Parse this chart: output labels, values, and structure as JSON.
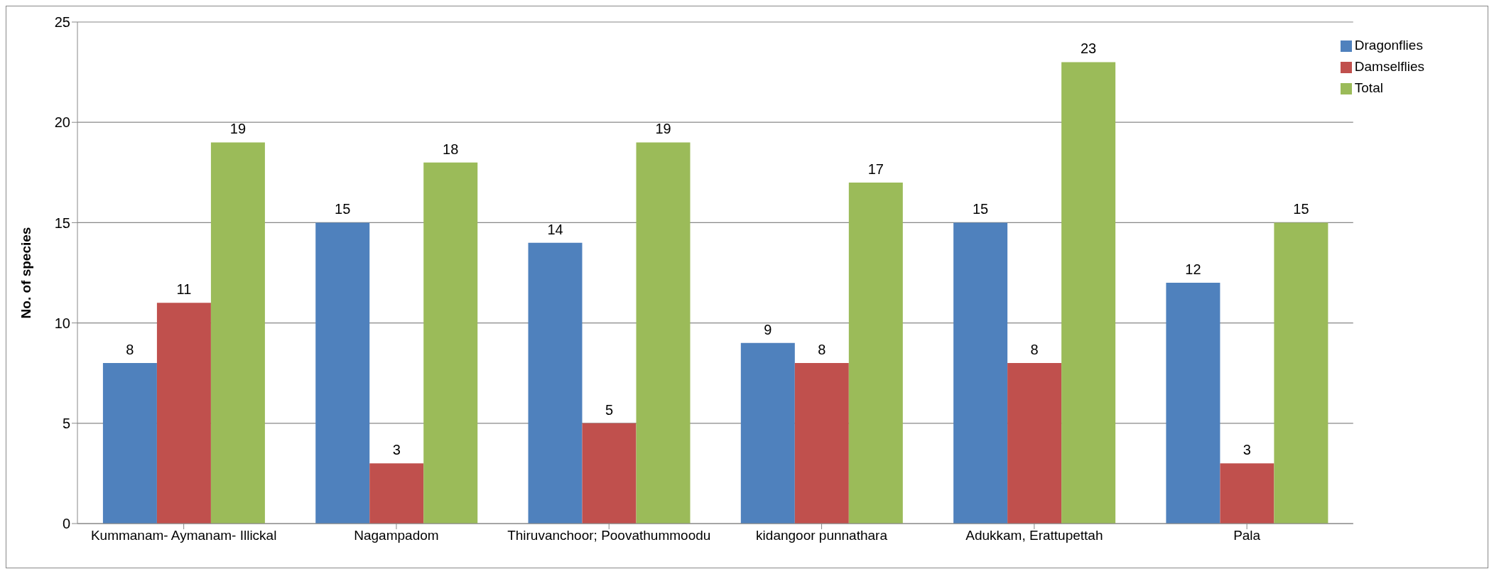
{
  "chart_data": {
    "type": "bar",
    "ylabel": "No. of species",
    "categories": [
      "Kummanam- Aymanam- Illickal",
      "Nagampadom",
      "Thiruvanchoor; Poovathummoodu",
      "kidangoor punnathara",
      "Adukkam, Erattupettah",
      "Pala"
    ],
    "series": [
      {
        "name": "Dragonflies",
        "color": "#4f81bd",
        "values": [
          8,
          15,
          14,
          9,
          15,
          12
        ]
      },
      {
        "name": "Damselflies",
        "color": "#c0504d",
        "values": [
          11,
          3,
          5,
          8,
          8,
          3
        ]
      },
      {
        "name": "Total",
        "color": "#9bbb59",
        "values": [
          19,
          18,
          19,
          17,
          23,
          15
        ]
      }
    ],
    "ylim": [
      0,
      25
    ],
    "yticks": [
      0,
      5,
      10,
      15,
      20,
      25
    ],
    "grid": "y",
    "legend": "top right",
    "data_labels": true
  }
}
